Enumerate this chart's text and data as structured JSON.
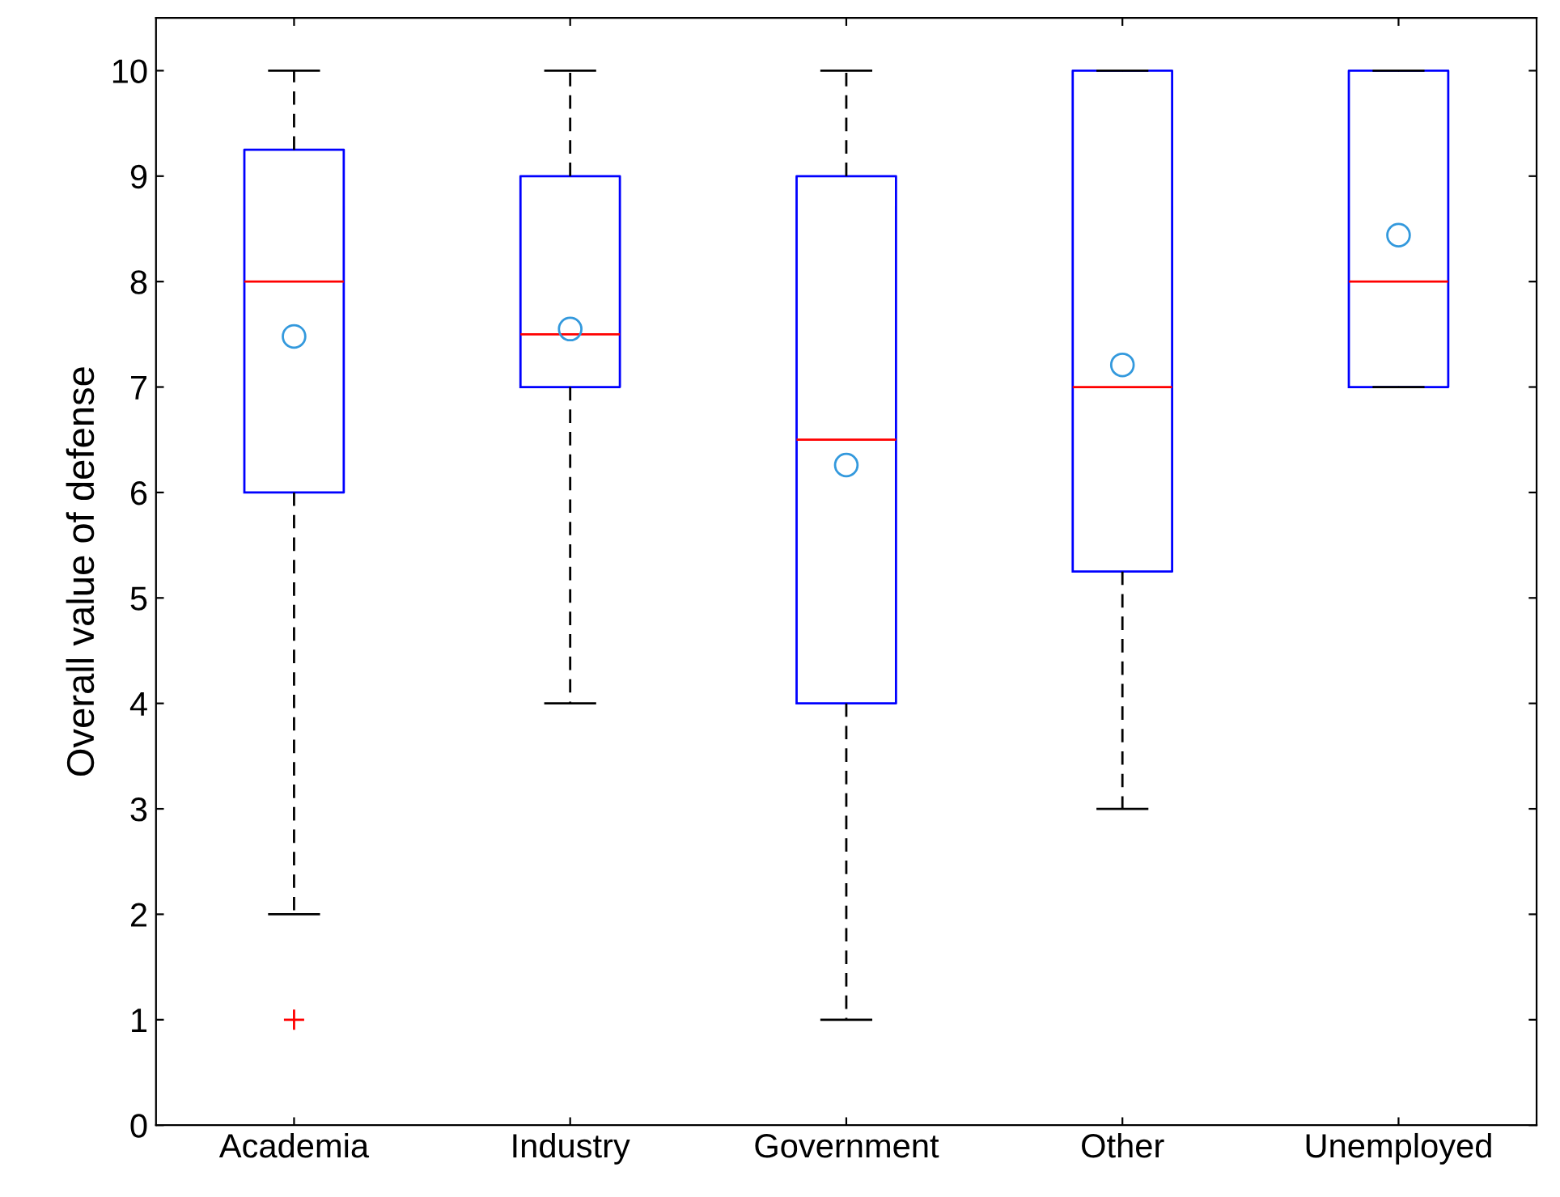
{
  "chart_data": {
    "type": "box",
    "ylabel": "Overall value of defense",
    "categories": [
      "Academia",
      "Industry",
      "Government",
      "Other",
      "Unemployed"
    ],
    "series": [
      {
        "color": "#0000ff",
        "boxes": [
          {
            "low": 2,
            "q1": 6,
            "median": 8,
            "q3": 9.25,
            "high": 10,
            "mean": 7.48,
            "outliers": [
              1
            ]
          },
          {
            "low": 4,
            "q1": 7,
            "median": 7.5,
            "q3": 9,
            "high": 10,
            "mean": 7.55
          },
          {
            "low": 1,
            "q1": 4,
            "median": 6.5,
            "q3": 9,
            "high": 10,
            "mean": 6.26
          },
          {
            "low": 3,
            "q1": 5.25,
            "median": 7,
            "q3": 10,
            "high": 10,
            "mean": 7.21
          },
          {
            "low": 7,
            "q1": 7,
            "median": 8,
            "q3": 10,
            "high": 10,
            "mean": 8.44
          }
        ]
      }
    ],
    "ylim": [
      0,
      10.5
    ],
    "yticks": [
      0,
      1,
      2,
      3,
      4,
      5,
      6,
      7,
      8,
      9,
      10
    ],
    "grid": false
  }
}
